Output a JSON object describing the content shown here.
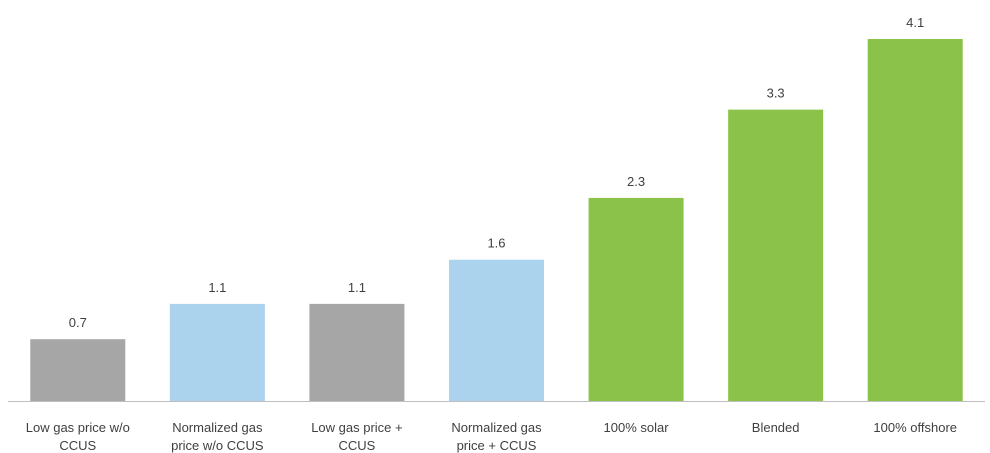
{
  "chart_data": {
    "type": "bar",
    "categories": [
      [
        "Low gas price w/o",
        "CCUS"
      ],
      [
        "Normalized gas",
        "price w/o CCUS"
      ],
      [
        "Low gas price +",
        "CCUS"
      ],
      [
        "Normalized gas",
        "price + CCUS"
      ],
      [
        "100% solar"
      ],
      [
        "Blended"
      ],
      [
        "100% offshore"
      ]
    ],
    "values": [
      0.7,
      1.1,
      1.1,
      1.6,
      2.3,
      3.3,
      4.1
    ],
    "value_labels": [
      "0.7",
      "1.1",
      "1.1",
      "1.6",
      "2.3",
      "3.3",
      "4.1"
    ],
    "bar_colors": [
      "#a6a6a6",
      "#abd3ee",
      "#a6a6a6",
      "#abd3ee",
      "#8bc34a",
      "#8bc34a",
      "#8bc34a"
    ],
    "ylim": [
      0,
      4.1
    ],
    "grid": false,
    "legend": "none",
    "title": "",
    "xlabel": "",
    "ylabel": ""
  }
}
